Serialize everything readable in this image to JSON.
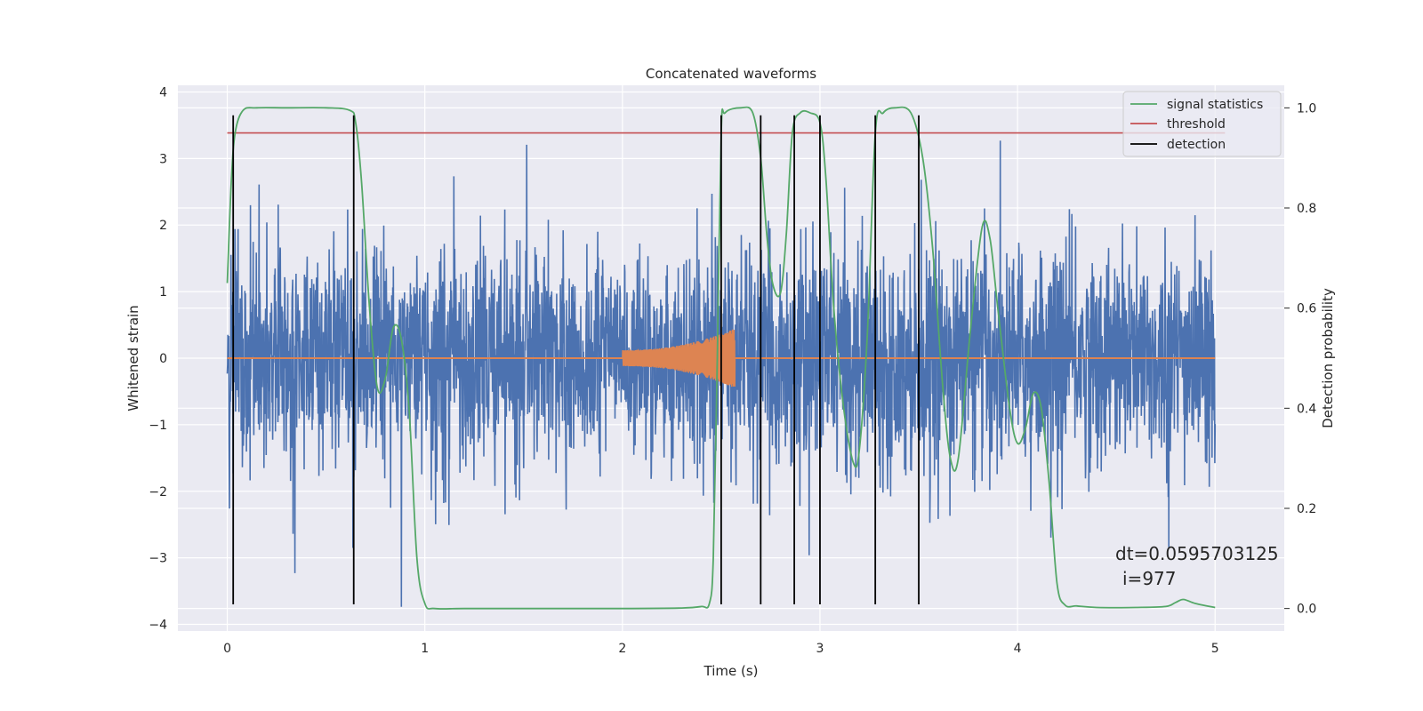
{
  "chart_data": {
    "type": "line",
    "title": "Concatenated waveforms",
    "xlabel": "Time (s)",
    "ylabel": "Whitened strain",
    "y2label": "Detection probability",
    "xlim": [
      -0.25,
      5.35
    ],
    "ylim": [
      -4.1,
      4.1
    ],
    "y2lim": [
      -0.045,
      1.045
    ],
    "x_ticks": [
      0,
      1,
      2,
      3,
      4,
      5
    ],
    "y_ticks": [
      -4,
      -3,
      -2,
      -1,
      0,
      1,
      2,
      3,
      4
    ],
    "y2_ticks": [
      0.0,
      0.2,
      0.4,
      0.6,
      0.8,
      1.0
    ],
    "x_tick_labels": [
      "0",
      "1",
      "2",
      "3",
      "4",
      "5"
    ],
    "y_tick_labels": [
      "−4",
      "−3",
      "−2",
      "−1",
      "0",
      "1",
      "2",
      "3",
      "4"
    ],
    "y2_tick_labels": [
      "0.0",
      "0.2",
      "0.4",
      "0.6",
      "0.8",
      "1.0"
    ],
    "grid": true,
    "legend_position": "top-right",
    "colors": {
      "background": "#eaeaf2",
      "grid": "#ffffff",
      "strain": "#4c72b0",
      "injection": "#dd8452",
      "statistic": "#55a868",
      "threshold": "#c44e52",
      "detection": "#000000"
    },
    "strain": {
      "x_range": [
        0,
        5
      ],
      "typical_amplitude": 0.75,
      "max_peak": 3.65,
      "min_peak": -3.75
    },
    "injection": {
      "x_range": [
        2.0,
        2.57
      ],
      "amplitude_start": 0.12,
      "amplitude_end": 0.45
    },
    "signal_statistics": {
      "x": [
        0.0,
        0.02,
        0.04,
        0.08,
        0.15,
        0.3,
        0.5,
        0.62,
        0.65,
        0.68,
        0.72,
        0.76,
        0.8,
        0.84,
        0.88,
        0.92,
        0.96,
        1.0,
        1.05,
        1.2,
        1.5,
        2.0,
        2.3,
        2.4,
        2.44,
        2.46,
        2.48,
        2.5,
        2.52,
        2.6,
        2.66,
        2.7,
        2.73,
        2.76,
        2.8,
        2.83,
        2.86,
        2.9,
        2.95,
        3.0,
        3.03,
        3.07,
        3.12,
        3.17,
        3.2,
        3.24,
        3.28,
        3.32,
        3.38,
        3.46,
        3.52,
        3.57,
        3.62,
        3.66,
        3.7,
        3.76,
        3.82,
        3.86,
        3.9,
        3.96,
        4.0,
        4.04,
        4.08,
        4.12,
        4.16,
        4.2,
        4.24,
        4.3,
        4.4,
        4.6,
        4.75,
        4.8,
        4.84,
        4.9,
        5.0
      ],
      "y": [
        0.65,
        0.85,
        0.95,
        0.995,
        1.0,
        1.0,
        1.0,
        0.995,
        0.97,
        0.85,
        0.6,
        0.44,
        0.46,
        0.56,
        0.54,
        0.4,
        0.1,
        0.01,
        0.0,
        0.0,
        0.0,
        0.0,
        0.001,
        0.004,
        0.01,
        0.1,
        0.5,
        0.95,
        0.99,
        1.0,
        0.99,
        0.9,
        0.75,
        0.65,
        0.63,
        0.75,
        0.95,
        0.99,
        0.99,
        0.97,
        0.86,
        0.6,
        0.4,
        0.29,
        0.32,
        0.55,
        0.95,
        0.99,
        1.0,
        0.99,
        0.9,
        0.72,
        0.45,
        0.3,
        0.3,
        0.55,
        0.76,
        0.74,
        0.6,
        0.4,
        0.33,
        0.36,
        0.43,
        0.4,
        0.25,
        0.05,
        0.007,
        0.005,
        0.002,
        0.002,
        0.004,
        0.012,
        0.018,
        0.01,
        0.002
      ]
    },
    "threshold": {
      "value": 0.95,
      "x_range": [
        0,
        5.05
      ]
    },
    "detections": [
      0.03,
      0.64,
      2.5,
      2.7,
      2.87,
      3.0,
      3.28,
      3.5
    ],
    "detection_y_range": [
      -3.7,
      3.65
    ],
    "legend": [
      "signal statistics",
      "threshold",
      "detection"
    ],
    "annotations": {
      "dt": "dt=0.0595703125",
      "i": "i=977"
    }
  }
}
